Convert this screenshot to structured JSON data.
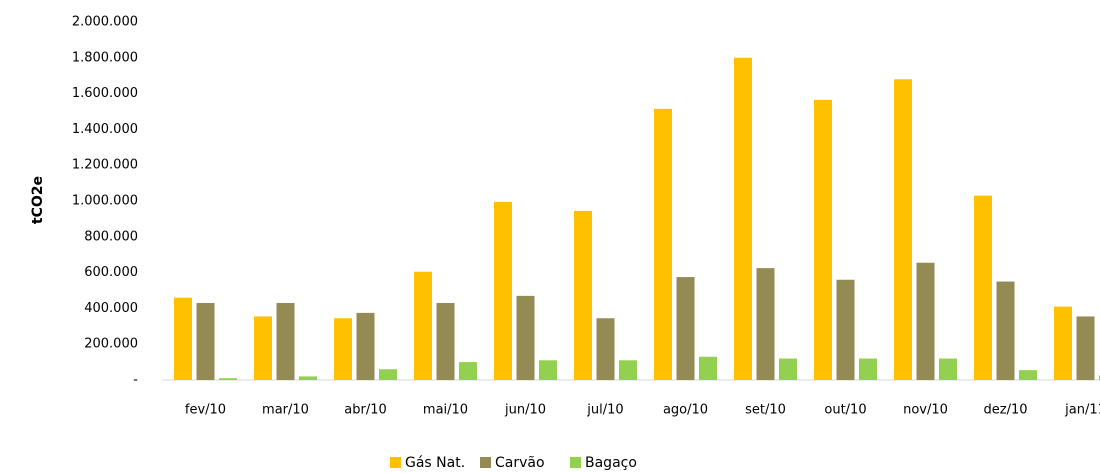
{
  "chart_data": {
    "type": "bar",
    "y_label": "tCO2e",
    "categories": [
      "fev/10",
      "mar/10",
      "abr/10",
      "mai/10",
      "jun/10",
      "jul/10",
      "ago/10",
      "set/10",
      "out/10",
      "nov/10",
      "dez/10",
      "jan/11"
    ],
    "series": [
      {
        "name": "Gás Nat.",
        "color": "#ffc000",
        "values": [
          460000,
          355000,
          345000,
          605000,
          995000,
          945000,
          1515000,
          1800000,
          1565000,
          1680000,
          1030000,
          410000
        ]
      },
      {
        "name": "Carvão",
        "color": "#948a54",
        "values": [
          430000,
          430000,
          375000,
          430000,
          470000,
          345000,
          575000,
          625000,
          560000,
          655000,
          550000,
          355000
        ]
      },
      {
        "name": "Bagaço",
        "color": "#92d050",
        "values": [
          10000,
          20000,
          60000,
          100000,
          110000,
          110000,
          130000,
          120000,
          120000,
          120000,
          55000,
          25000
        ]
      }
    ],
    "ylim": [
      0,
      2000000
    ],
    "yticks": [
      {
        "value": 0,
        "label": "-"
      },
      {
        "value": 200000,
        "label": "200.000"
      },
      {
        "value": 400000,
        "label": "400.000"
      },
      {
        "value": 600000,
        "label": "600.000"
      },
      {
        "value": 800000,
        "label": "800.000"
      },
      {
        "value": 1000000,
        "label": "1.000.000"
      },
      {
        "value": 1200000,
        "label": "1.200.000"
      },
      {
        "value": 1400000,
        "label": "1.400.000"
      },
      {
        "value": 1600000,
        "label": "1.600.000"
      },
      {
        "value": 1800000,
        "label": "1.800.000"
      },
      {
        "value": 2000000,
        "label": "2.000.000"
      }
    ],
    "grid": false,
    "legend": "bottom"
  }
}
